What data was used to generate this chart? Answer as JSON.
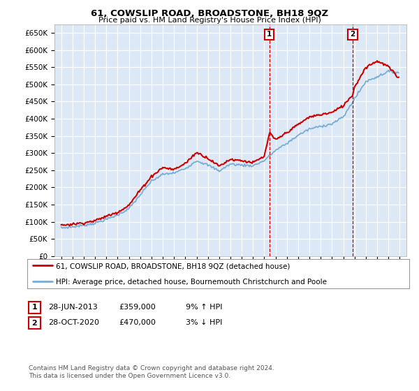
{
  "title": "61, COWSLIP ROAD, BROADSTONE, BH18 9QZ",
  "subtitle": "Price paid vs. HM Land Registry's House Price Index (HPI)",
  "red_label": "61, COWSLIP ROAD, BROADSTONE, BH18 9QZ (detached house)",
  "blue_label": "HPI: Average price, detached house, Bournemouth Christchurch and Poole",
  "annotation1_date": "28-JUN-2013",
  "annotation1_price": "£359,000",
  "annotation1_hpi": "9% ↑ HPI",
  "annotation2_date": "28-OCT-2020",
  "annotation2_price": "£470,000",
  "annotation2_hpi": "3% ↓ HPI",
  "footnote1": "Contains HM Land Registry data © Crown copyright and database right 2024.",
  "footnote2": "This data is licensed under the Open Government Licence v3.0.",
  "ylim_min": 0,
  "ylim_max": 675000,
  "background_color": "#ffffff",
  "plot_bg_color": "#dce8f5",
  "grid_color": "#ffffff",
  "red_color": "#cc0000",
  "blue_color": "#7aadd4",
  "marker1_x": 2013.458,
  "marker2_x": 2020.833,
  "blue_anchors_years": [
    1995,
    1996,
    1997,
    1998,
    1999,
    2000,
    2001,
    2002,
    2003,
    2004,
    2005,
    2006,
    2007,
    2008,
    2009,
    2010,
    2011,
    2012,
    2013,
    2014,
    2015,
    2016,
    2017,
    2018,
    2019,
    2020,
    2021,
    2022,
    2023,
    2024,
    2024.9
  ],
  "blue_anchors_vals": [
    82000,
    85000,
    90000,
    96000,
    107000,
    120000,
    138000,
    178000,
    218000,
    238000,
    242000,
    255000,
    278000,
    265000,
    248000,
    268000,
    265000,
    263000,
    278000,
    308000,
    328000,
    352000,
    370000,
    378000,
    385000,
    405000,
    458000,
    508000,
    522000,
    538000,
    535000
  ],
  "red_anchors_years": [
    1995,
    1996,
    1997,
    1998,
    1999,
    2000,
    2001,
    2002,
    2003,
    2004,
    2005,
    2006,
    2007,
    2008,
    2009,
    2010,
    2011,
    2012,
    2013,
    2013.458,
    2014,
    2015,
    2016,
    2017,
    2018,
    2019,
    2020,
    2020.833,
    2021,
    2022,
    2023,
    2024,
    2024.9
  ],
  "red_anchors_vals": [
    90000,
    93000,
    97000,
    103000,
    116000,
    128000,
    148000,
    192000,
    232000,
    258000,
    252000,
    270000,
    302000,
    285000,
    262000,
    282000,
    278000,
    272000,
    290000,
    359000,
    338000,
    360000,
    383000,
    405000,
    412000,
    418000,
    438000,
    470000,
    492000,
    550000,
    568000,
    552000,
    518000
  ]
}
